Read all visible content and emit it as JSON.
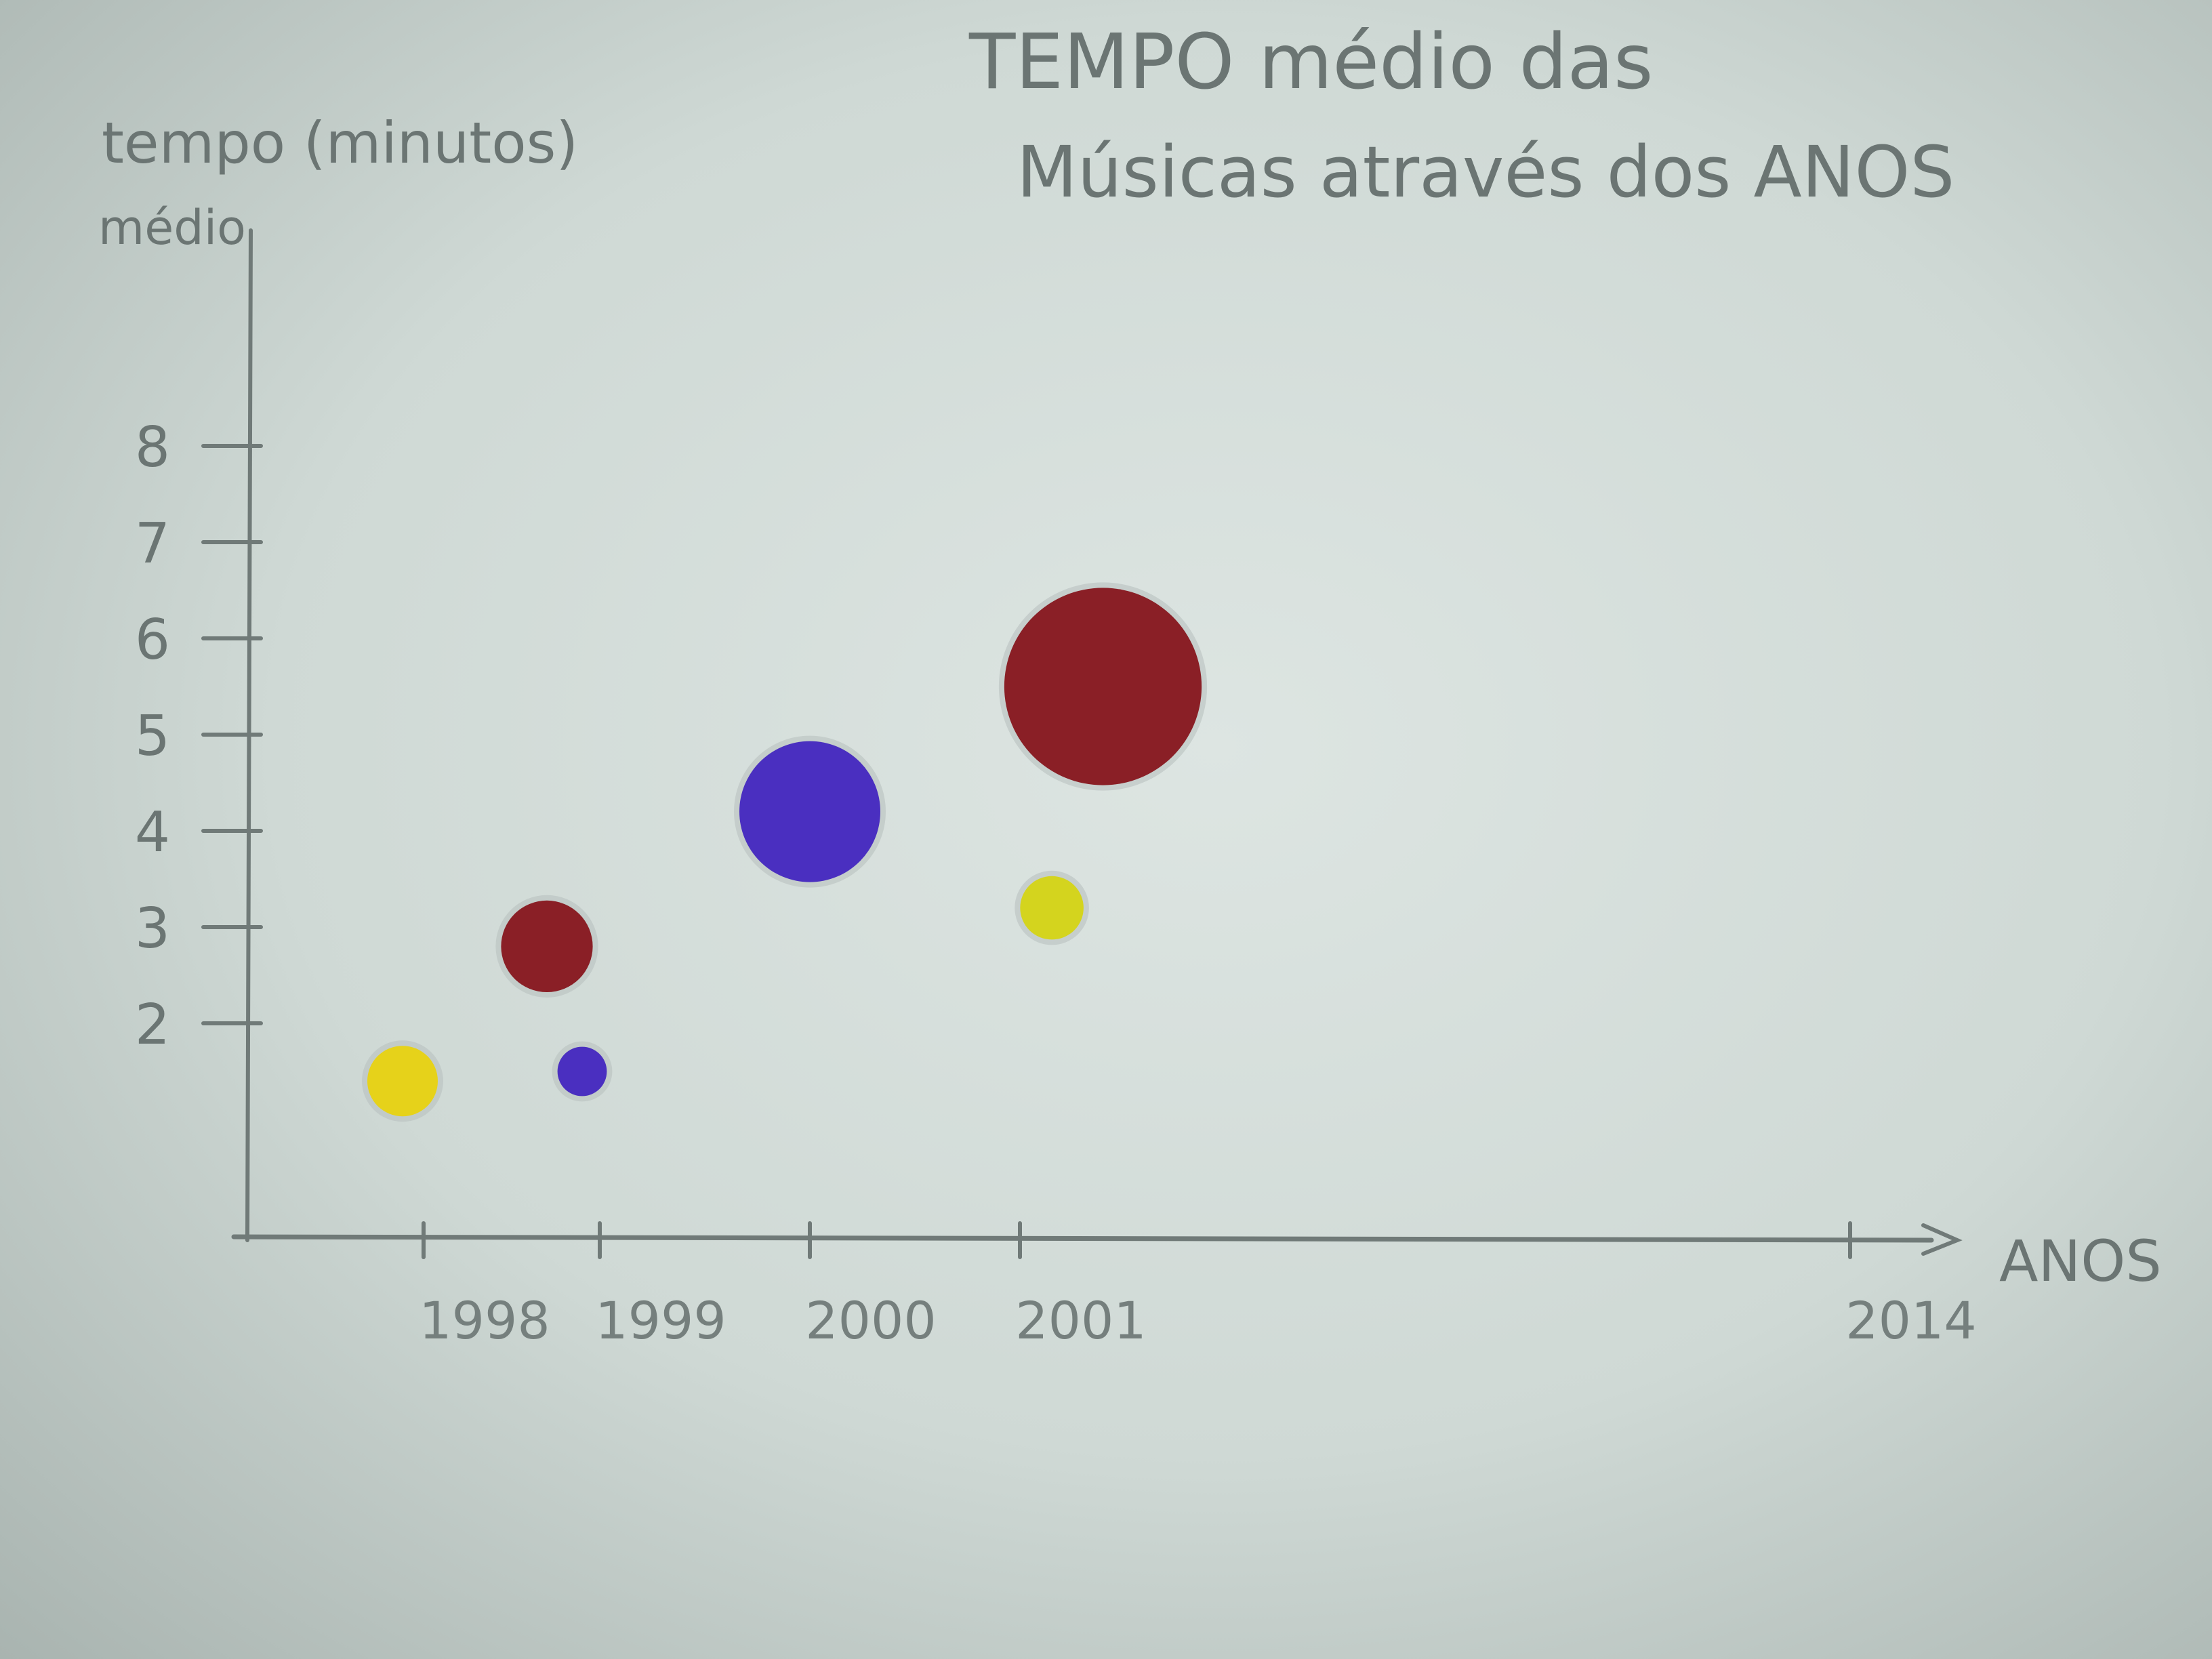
{
  "chart_data": {
    "type": "scatter",
    "title_lines": [
      "TEMPO médio das",
      "Músicas através dos ANOS"
    ],
    "ylabel_lines": [
      "tempo (minutos)",
      "médio"
    ],
    "xlabel": "ANOS",
    "x_ticks": [
      1998,
      1999,
      2000,
      2001,
      2014
    ],
    "x_tick_labels": [
      "1998",
      "1999",
      "2000",
      "2001",
      "2014"
    ],
    "y_ticks": [
      2,
      3,
      4,
      5,
      6,
      7,
      8
    ],
    "y_tick_labels": [
      "2",
      "3",
      "4",
      "5",
      "6",
      "7",
      "8"
    ],
    "points": [
      {
        "x": 1997.8,
        "y": 1.4,
        "size": 1.0,
        "color": "#e6d21a"
      },
      {
        "x": 1998.7,
        "y": 2.8,
        "size": 1.3,
        "color": "#8a1f26"
      },
      {
        "x": 1998.9,
        "y": 1.5,
        "size": 0.7,
        "color": "#4a2fc0"
      },
      {
        "x": 2000.0,
        "y": 4.2,
        "size": 2.0,
        "color": "#4a2fc0"
      },
      {
        "x": 2001.5,
        "y": 3.2,
        "size": 0.9,
        "color": "#d4d41e"
      },
      {
        "x": 2002.3,
        "y": 5.5,
        "size": 2.8,
        "color": "#8a1f26"
      }
    ],
    "grid": false
  },
  "colors": {
    "pencil": "#707a78",
    "paper": "#dde5e2"
  }
}
